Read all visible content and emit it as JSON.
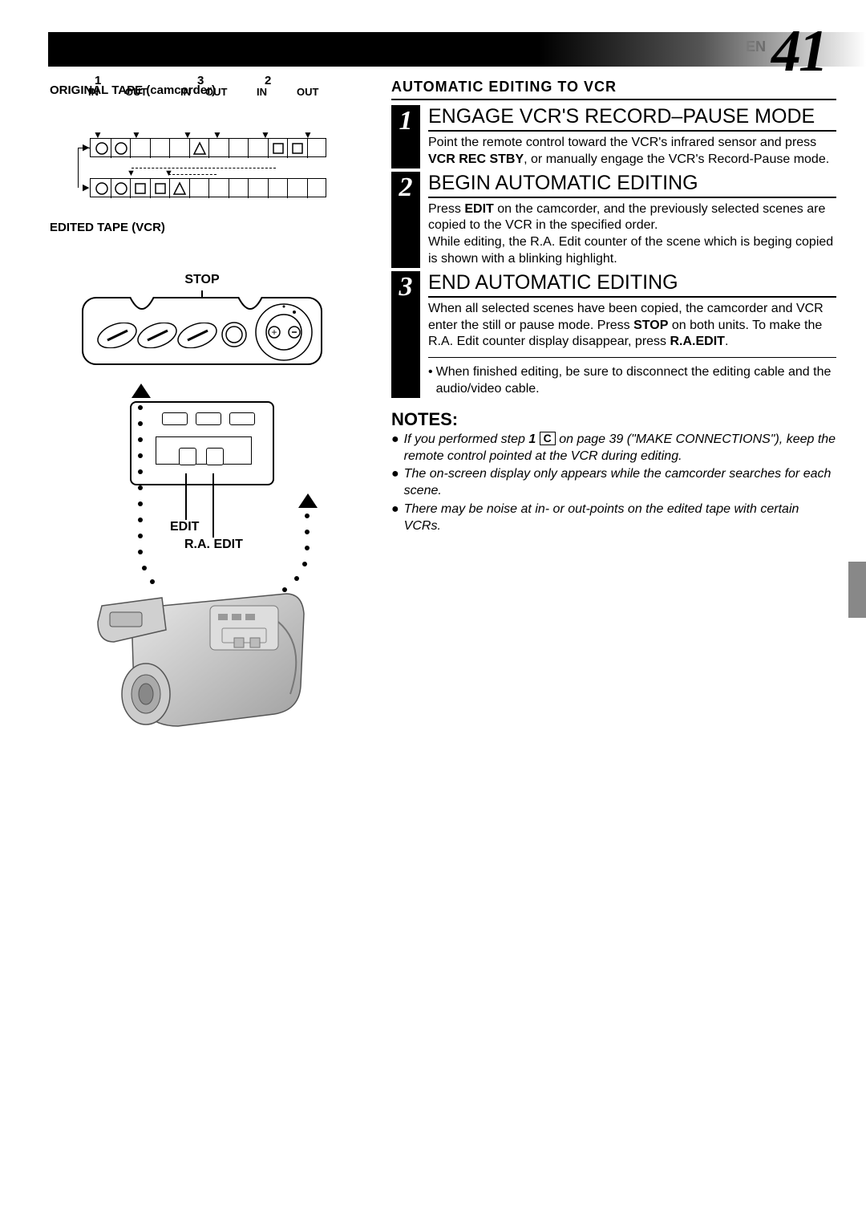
{
  "page": {
    "lang": "EN",
    "number": "41"
  },
  "left": {
    "originalLabel": "ORIGINAL TAPE (camcorder)",
    "editedLabel": "EDITED TAPE (VCR)",
    "scene1": "1",
    "scene2": "2",
    "scene3": "3",
    "in": "IN",
    "out": "OUT",
    "stop": "STOP",
    "edit": "EDIT",
    "raEdit": "R.A. EDIT"
  },
  "right": {
    "section": "AUTOMATIC EDITING TO VCR",
    "steps": [
      {
        "num": "1",
        "title": "ENGAGE VCR'S RECORD–PAUSE MODE",
        "body": "Point the remote control toward the VCR's infrared sensor and press <b>VCR REC STBY</b>, or manually engage the VCR's Record-Pause mode."
      },
      {
        "num": "2",
        "title": "BEGIN AUTOMATIC EDITING",
        "body": "Press <b>EDIT</b> on the camcorder, and the previously selected scenes are copied to the VCR in the specified order.<br>While editing, the R.A. Edit counter of the scene which is beging copied is shown with a blinking highlight."
      },
      {
        "num": "3",
        "title": "END AUTOMATIC EDITING",
        "body": "When all selected scenes have been copied, the camcorder and VCR enter the still or pause mode. Press <b>STOP</b> on both units. To make the R.A. Edit counter display disappear, press <b>R.A.EDIT</b>."
      }
    ],
    "postBullet": "When finished editing, be sure to disconnect the editing cable and the audio/video cable.",
    "notesTitle": "NOTES:",
    "notes": [
      "If you performed step <b>1</b> <span class=\"box-c\">C</span> on page 39 (\"MAKE CONNECTIONS\"), keep the remote control pointed at the VCR during editing.",
      "The on-screen display only appears while the camcorder searches for each scene.",
      "There may be noise at in- or out-points on the edited tape with certain VCRs."
    ]
  },
  "style": {
    "headerGradientFrom": "#000000",
    "headerGradientTo": "#ffffff",
    "background": "#ffffff",
    "sideTabColor": "#888888"
  }
}
